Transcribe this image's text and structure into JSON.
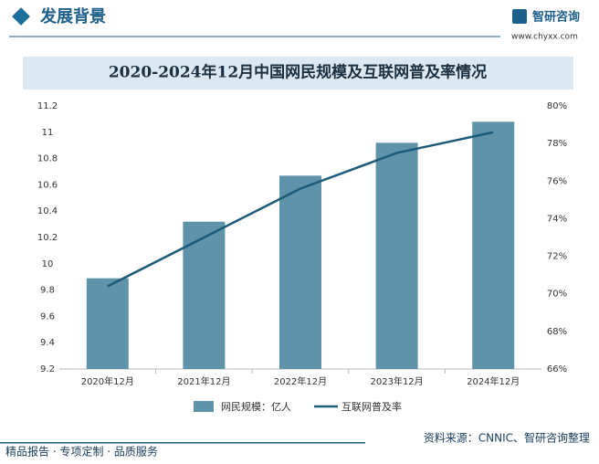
{
  "header": {
    "title": "发展背景",
    "logo": "智研咨询",
    "url": "www.chyxx.com"
  },
  "chart_data": {
    "type": "bar",
    "title": "2020-2024年12月中国网民规模及互联网普及率情况",
    "categories": [
      "2020年12月",
      "2021年12月",
      "2022年12月",
      "2023年12月",
      "2024年12月"
    ],
    "series": [
      {
        "name": "网民规模：亿人",
        "type": "bar",
        "color": "#5e93a9",
        "values": [
          9.89,
          10.32,
          10.67,
          10.92,
          11.08
        ]
      },
      {
        "name": "互联网普及率",
        "type": "line",
        "axis": "y2",
        "color": "#1b5a78",
        "values": [
          70.4,
          73.0,
          75.6,
          77.5,
          78.6
        ]
      }
    ],
    "ylim": [
      9.2,
      11.2
    ],
    "yticks": [
      9.2,
      9.4,
      9.6,
      9.8,
      10,
      10.2,
      10.4,
      10.6,
      10.8,
      11,
      11.2
    ],
    "y2lim": [
      66,
      80
    ],
    "y2ticks": [
      {
        "value": 66,
        "label": "66%"
      },
      {
        "value": 68,
        "label": "68%"
      },
      {
        "value": 70,
        "label": "70%"
      },
      {
        "value": 72,
        "label": "72%"
      },
      {
        "value": 74,
        "label": "74%"
      },
      {
        "value": 76,
        "label": "76%"
      },
      {
        "value": 78,
        "label": "78%"
      },
      {
        "value": 80,
        "label": "80%"
      }
    ]
  },
  "source": "资料来源：CNNIC、智研咨询整理",
  "footer": "精品报告 · 专项定制 · 品质服务"
}
